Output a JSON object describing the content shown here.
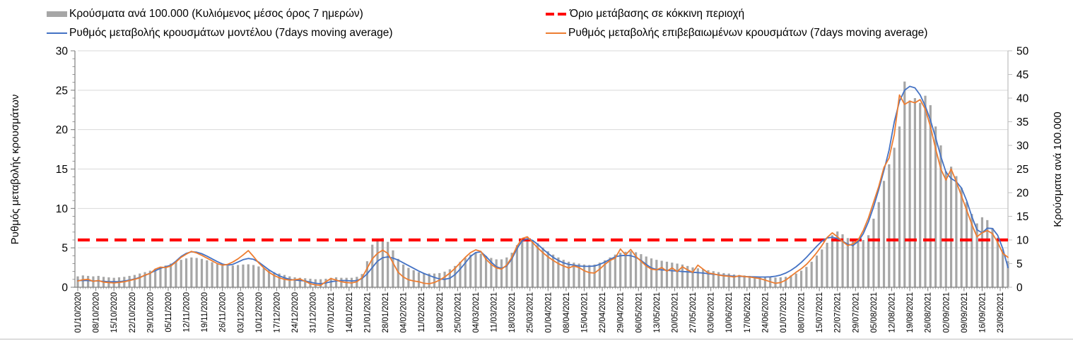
{
  "chart_data": {
    "type": "combo",
    "title": "",
    "days_per_point": 2,
    "total_days": 360,
    "left_axis": {
      "title": "Ρυθμός μεταβολής κρουσμάτων",
      "min": 0,
      "max": 30,
      "tick_step": 5,
      "ticks": [
        0,
        5,
        10,
        15,
        20,
        25,
        30
      ]
    },
    "right_axis": {
      "title": "Κρούσματα ανά 100.000",
      "min": 0,
      "max": 50,
      "tick_step": 5,
      "ticks": [
        0,
        5,
        10,
        15,
        20,
        25,
        30,
        35,
        40,
        45,
        50
      ]
    },
    "threshold": {
      "label": "Όριο μετάβασης σε κόκκινη περιοχή",
      "value": 6,
      "axis": "left",
      "color": "#FF0000"
    },
    "colors": {
      "grid": "#D9D9D9",
      "axis": "#7F7F7F",
      "axis_light": "#BFBFBF",
      "text": "#000000",
      "background": "#FFFFFF"
    },
    "x_tick_labels": [
      "01/10/2020",
      "08/10/2020",
      "15/10/2020",
      "22/10/2020",
      "29/10/2020",
      "05/11/2020",
      "12/11/2020",
      "19/11/2020",
      "26/11/2020",
      "03/12/2020",
      "10/12/2020",
      "17/12/2020",
      "24/12/2020",
      "31/12/2020",
      "07/01/2021",
      "14/01/2021",
      "21/01/2021",
      "28/01/2021",
      "04/02/2021",
      "11/02/2021",
      "18/02/2021",
      "25/02/2021",
      "04/03/2021",
      "11/03/2021",
      "18/03/2021",
      "25/03/2021",
      "01/04/2021",
      "08/04/2021",
      "15/04/2021",
      "22/04/2021",
      "29/04/2021",
      "06/05/2021",
      "13/05/2021",
      "20/05/2021",
      "27/05/2021",
      "03/06/2021",
      "10/06/2021",
      "17/06/2021",
      "24/06/2021",
      "01/07/2021",
      "08/07/2021",
      "15/07/2021",
      "22/07/2021",
      "29/07/2021",
      "05/08/2021",
      "12/08/2021",
      "19/08/2021",
      "26/08/2021",
      "02/09/2021",
      "09/09/2021",
      "16/09/2021",
      "23/09/2021"
    ],
    "series": [
      {
        "name": "Κρούσματα ανά 100.000 (Κυλιόμενος μέσος όρος 7 ημερών)",
        "type": "bar",
        "axis": "right",
        "color": "#A6A6A6",
        "values": [
          2.3,
          2.5,
          2.4,
          2.3,
          2.4,
          2.2,
          2.1,
          2.0,
          2.1,
          2.2,
          2.4,
          2.6,
          2.9,
          3.2,
          3.5,
          3.9,
          4.3,
          4.6,
          5.0,
          5.4,
          5.8,
          6.1,
          6.3,
          6.2,
          6.0,
          5.7,
          5.3,
          4.9,
          4.6,
          4.5,
          4.6,
          4.7,
          4.8,
          4.85,
          4.7,
          4.4,
          4.0,
          3.6,
          3.2,
          2.9,
          2.6,
          2.3,
          2.1,
          2.0,
          1.9,
          1.8,
          1.7,
          1.7,
          1.8,
          2.0,
          2.1,
          2.0,
          2.0,
          2.0,
          2.2,
          2.8,
          5.5,
          9.0,
          10.2,
          10.4,
          9.6,
          7.8,
          6.0,
          4.8,
          4.1,
          3.6,
          3.2,
          3.0,
          2.9,
          2.9,
          3.0,
          3.3,
          3.8,
          4.5,
          5.4,
          6.2,
          6.9,
          7.3,
          7.1,
          6.6,
          6.2,
          5.9,
          5.9,
          6.3,
          7.3,
          8.9,
          10.1,
          10.4,
          10.0,
          9.3,
          8.4,
          7.6,
          6.9,
          6.3,
          5.8,
          5.4,
          5.2,
          5.0,
          4.8,
          4.7,
          4.8,
          5.2,
          5.7,
          6.3,
          6.9,
          7.3,
          7.5,
          7.6,
          7.4,
          7.0,
          6.5,
          6.1,
          5.8,
          5.6,
          5.4,
          5.2,
          5.0,
          4.8,
          4.5,
          4.2,
          4.0,
          3.8,
          3.6,
          3.4,
          3.2,
          3.0,
          2.9,
          2.7,
          2.6,
          2.5,
          2.4,
          2.3,
          2.2,
          2.15,
          2.1,
          2.05,
          2.1,
          2.2,
          2.5,
          2.9,
          3.5,
          4.3,
          5.4,
          6.7,
          8.0,
          9.4,
          11.0,
          11.8,
          11.2,
          10.4,
          9.8,
          9.6,
          10.0,
          11.0,
          14.5,
          18.0,
          22.5,
          26.0,
          29.5,
          34.0,
          43.5,
          39.5,
          40.0,
          39.0,
          40.5,
          38.5,
          34.0,
          30.0,
          24.5,
          25.5,
          23.5,
          21.0,
          18.0,
          15.5,
          13.5,
          14.8,
          14.2,
          12.5,
          10.5,
          8.0,
          5.5
        ]
      },
      {
        "name": "Ρυθμός μεταβολής κρουσμάτων μοντέλου (7days moving average)",
        "type": "line",
        "axis": "left",
        "color": "#4472C4",
        "values": [
          0.85,
          0.85,
          0.85,
          0.8,
          0.8,
          0.75,
          0.7,
          0.7,
          0.7,
          0.8,
          0.9,
          1.05,
          1.25,
          1.5,
          1.8,
          2.1,
          2.4,
          2.6,
          2.8,
          3.3,
          3.9,
          4.3,
          4.5,
          4.45,
          4.25,
          3.95,
          3.6,
          3.25,
          2.95,
          2.8,
          2.9,
          3.2,
          3.5,
          3.65,
          3.55,
          3.2,
          2.7,
          2.2,
          1.8,
          1.45,
          1.2,
          1.0,
          0.9,
          0.85,
          0.8,
          0.65,
          0.5,
          0.45,
          0.55,
          0.7,
          0.8,
          0.85,
          0.85,
          0.8,
          0.85,
          1.1,
          1.7,
          2.5,
          3.3,
          3.75,
          3.85,
          3.7,
          3.45,
          3.1,
          2.75,
          2.4,
          2.05,
          1.75,
          1.5,
          1.25,
          1.05,
          1.0,
          1.15,
          1.6,
          2.3,
          3.1,
          3.9,
          4.4,
          4.5,
          3.9,
          3.2,
          2.6,
          2.4,
          2.7,
          3.6,
          4.9,
          5.9,
          6.15,
          5.95,
          5.45,
          4.85,
          4.3,
          3.8,
          3.4,
          3.1,
          2.9,
          2.8,
          2.7,
          2.65,
          2.65,
          2.7,
          2.9,
          3.2,
          3.55,
          3.85,
          4.0,
          4.05,
          4.0,
          3.8,
          3.4,
          2.9,
          2.45,
          2.25,
          2.2,
          2.15,
          2.1,
          2.05,
          2.0,
          1.95,
          1.9,
          1.85,
          1.8,
          1.72,
          1.65,
          1.58,
          1.5,
          1.45,
          1.4,
          1.38,
          1.35,
          1.33,
          1.32,
          1.3,
          1.3,
          1.32,
          1.4,
          1.55,
          1.8,
          2.15,
          2.6,
          3.15,
          3.8,
          4.5,
          5.2,
          5.85,
          6.25,
          6.35,
          6.2,
          5.85,
          5.45,
          5.3,
          5.8,
          6.8,
          8.3,
          10.2,
          12.4,
          14.8,
          17.4,
          21.0,
          23.6,
          25.0,
          25.5,
          25.3,
          24.4,
          23.0,
          21.2,
          19.0,
          16.6,
          14.6,
          13.8,
          13.4,
          12.6,
          11.0,
          9.0,
          7.3,
          6.9,
          7.5,
          7.45,
          6.6,
          4.9,
          2.5
        ]
      },
      {
        "name": "Ρυθμός μεταβολής επιβεβαιωμένων κρουσμάτων (7days moving average)",
        "type": "line",
        "axis": "left",
        "color": "#ED7D31",
        "values": [
          0.8,
          0.95,
          1.0,
          0.75,
          0.85,
          0.65,
          0.6,
          0.55,
          0.62,
          0.7,
          0.85,
          1.0,
          1.2,
          1.55,
          1.75,
          2.3,
          2.55,
          2.5,
          2.7,
          3.2,
          3.8,
          4.2,
          4.55,
          4.35,
          4.05,
          3.7,
          3.35,
          3.0,
          2.8,
          2.9,
          3.2,
          3.6,
          4.1,
          4.65,
          3.9,
          3.1,
          2.45,
          1.9,
          1.5,
          1.2,
          1.0,
          0.9,
          0.95,
          1.05,
          0.75,
          0.45,
          0.3,
          0.25,
          0.7,
          1.1,
          0.9,
          0.7,
          0.6,
          0.55,
          0.7,
          1.2,
          2.4,
          3.6,
          4.3,
          4.7,
          4.3,
          3.1,
          1.9,
          1.3,
          0.95,
          0.8,
          0.7,
          0.5,
          0.45,
          0.6,
          0.9,
          1.3,
          1.8,
          2.4,
          3.1,
          3.8,
          4.4,
          4.75,
          4.55,
          3.55,
          2.9,
          2.45,
          2.3,
          2.8,
          3.8,
          5.2,
          6.2,
          6.4,
          5.7,
          5.0,
          4.4,
          3.85,
          3.4,
          3.0,
          2.7,
          2.45,
          2.7,
          2.5,
          2.1,
          1.85,
          1.8,
          2.3,
          2.9,
          3.4,
          3.7,
          4.85,
          4.1,
          4.8,
          3.9,
          3.3,
          2.7,
          2.3,
          2.2,
          2.5,
          2.05,
          2.45,
          2.0,
          2.6,
          2.2,
          1.9,
          2.8,
          2.3,
          1.8,
          1.7,
          1.55,
          1.45,
          1.4,
          1.3,
          1.45,
          1.35,
          1.3,
          1.2,
          1.1,
          0.9,
          0.7,
          0.5,
          0.6,
          0.9,
          1.4,
          1.9,
          2.35,
          2.9,
          3.6,
          4.4,
          5.3,
          6.3,
          6.9,
          6.4,
          5.8,
          5.3,
          5.5,
          6.0,
          7.2,
          8.8,
          10.8,
          12.8,
          15.2,
          16.4,
          19.4,
          24.4,
          23.2,
          23.6,
          23.4,
          23.8,
          22.6,
          20.4,
          17.6,
          15.0,
          13.6,
          15.0,
          13.4,
          11.6,
          9.8,
          8.0,
          6.4,
          6.9,
          7.2,
          6.8,
          5.7,
          4.3,
          3.8
        ]
      }
    ]
  }
}
